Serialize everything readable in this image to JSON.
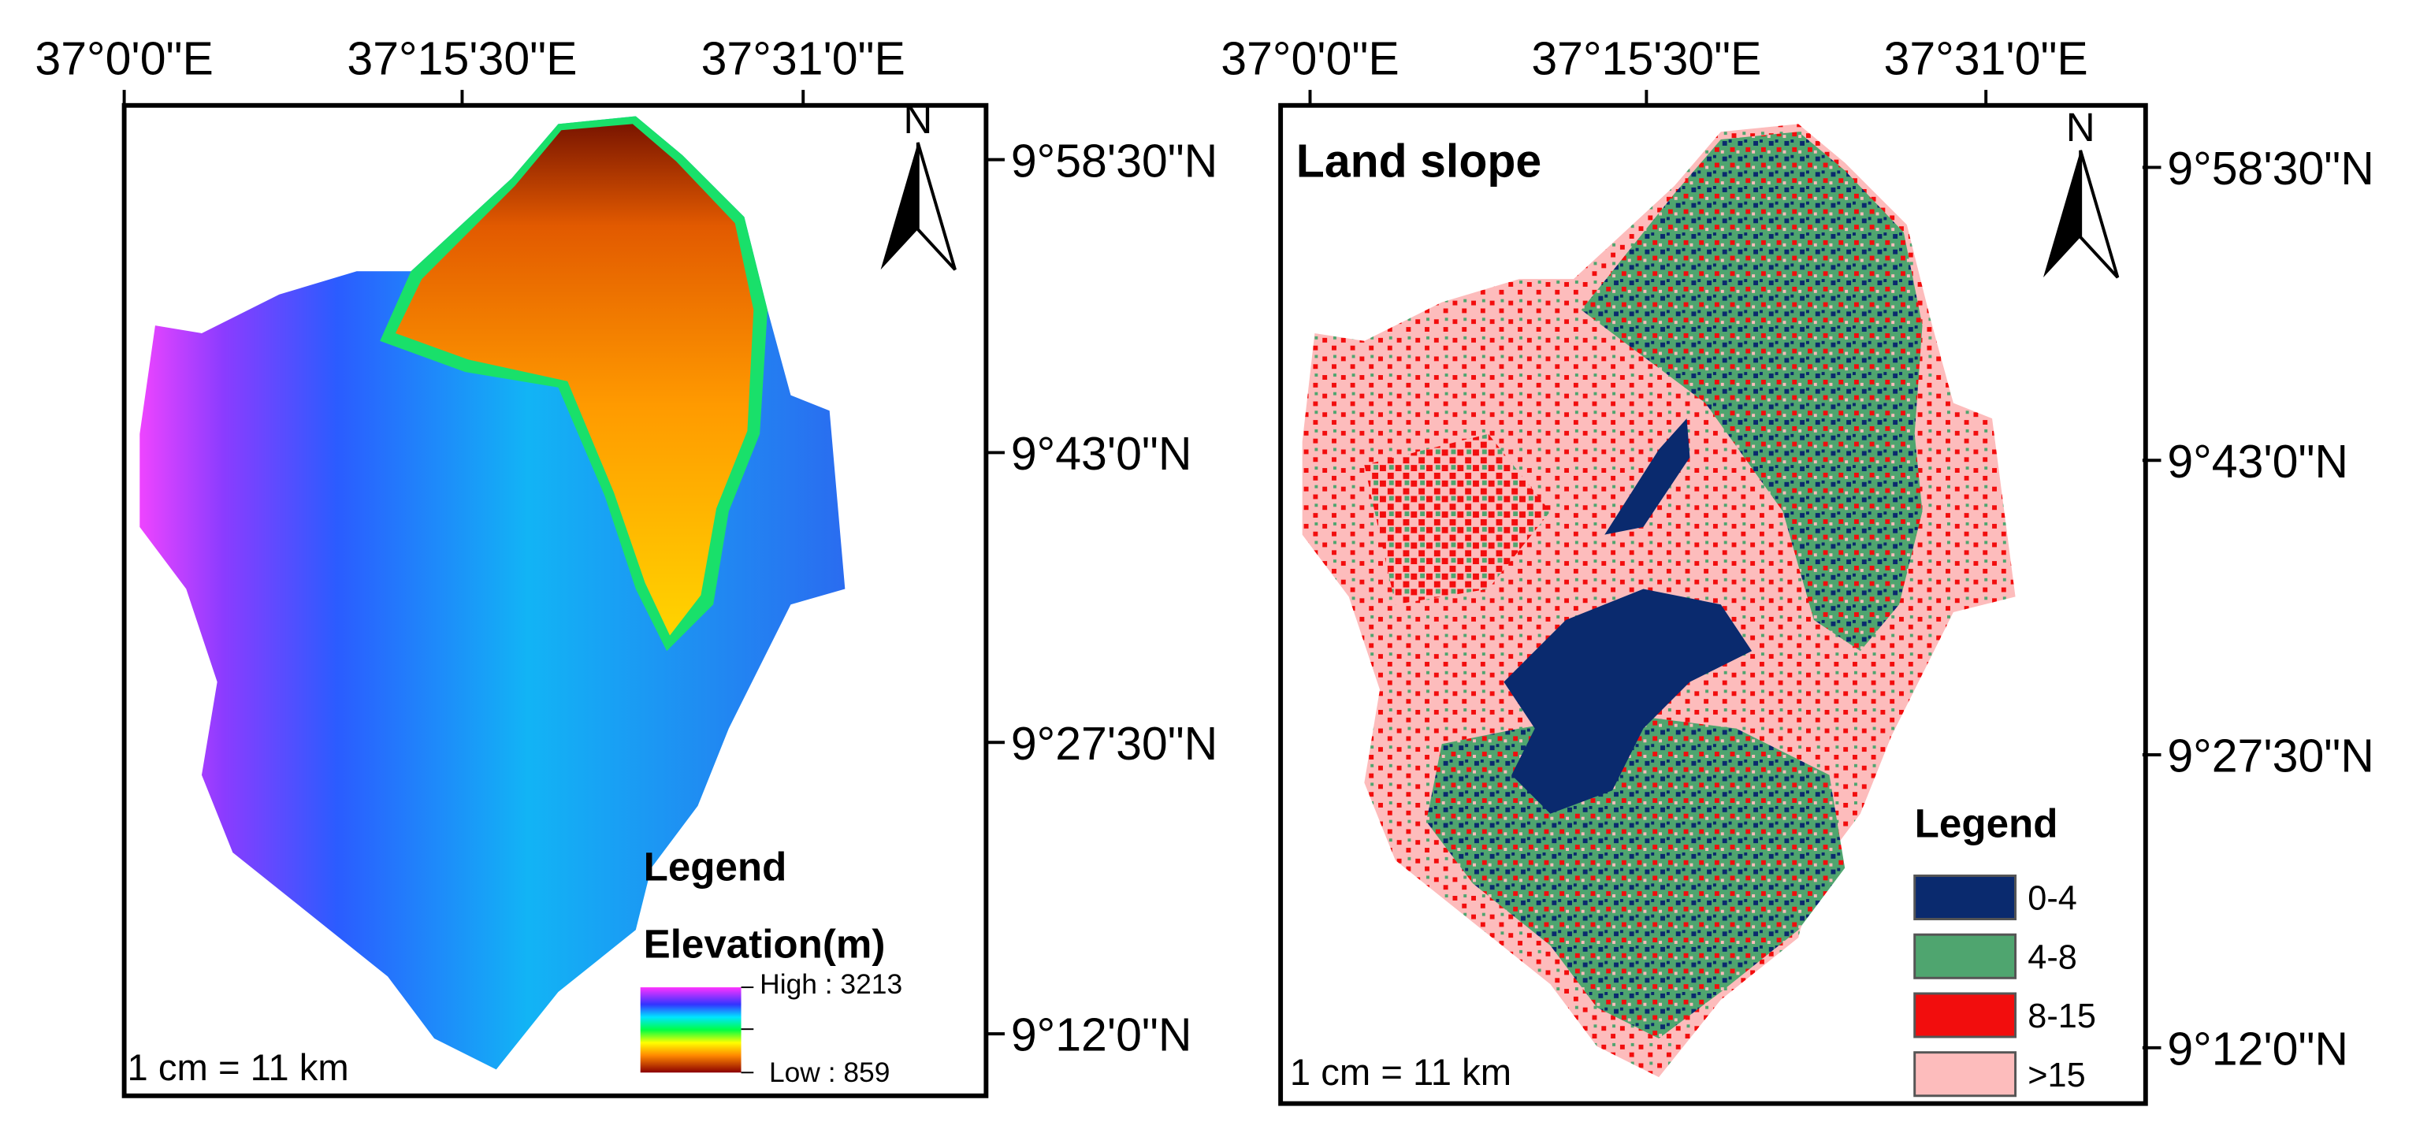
{
  "panels": [
    {
      "x_labels": [
        "37°0'0\"E",
        "37°15'30\"E",
        "37°31'0\"E"
      ],
      "y_labels": [
        "9°58'30\"N",
        "9°43'0\"N",
        "9°27'30\"N",
        "9°12'0\"N"
      ],
      "north": "N",
      "legend_title": "Legend",
      "legend_subtitle": "Elevation(m)",
      "legend_high": "High : 3213",
      "legend_low": "Low : 859",
      "scale": "1 cm = 11 km"
    },
    {
      "title": "Land slope",
      "x_labels": [
        "37°0'0\"E",
        "37°15'30\"E",
        "37°31'0\"E"
      ],
      "y_labels": [
        "9°58'30\"N",
        "9°43'0\"N",
        "9°27'30\"N",
        "9°12'0\"N"
      ],
      "north": "N",
      "legend_title": "Legend",
      "legend_items": [
        {
          "label": "0-4",
          "color": "#0a2a6e"
        },
        {
          "label": "4-8",
          "color": "#4fa56f"
        },
        {
          "label": "8-15",
          "color": "#f20d0d"
        },
        {
          "label": ">15",
          "color": "#fdbcbc"
        }
      ],
      "scale": "1 cm = 11 km"
    }
  ]
}
